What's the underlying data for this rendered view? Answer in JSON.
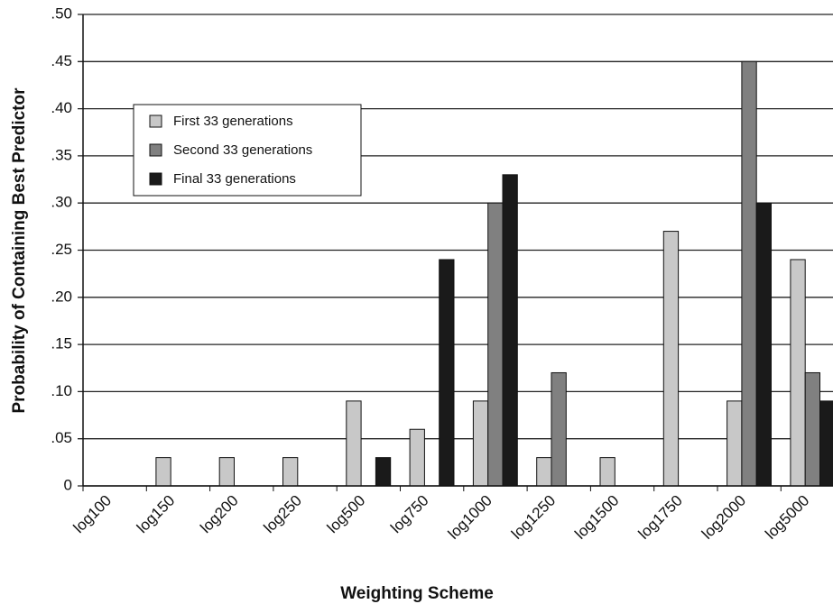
{
  "chart_data": {
    "type": "bar",
    "x_label": "Weighting Scheme",
    "y_label": "Probability of Containing Best Predictor",
    "categories": [
      "log100",
      "log150",
      "log200",
      "log250",
      "log500",
      "log750",
      "log1000",
      "log1250",
      "log1500",
      "log1750",
      "log2000",
      "log5000"
    ],
    "series": [
      {
        "name": "First 33 generations",
        "color": "#c8c8c8",
        "values": [
          0,
          0.03,
          0.03,
          0.03,
          0.09,
          0.06,
          0.09,
          0.03,
          0.03,
          0.27,
          0.09,
          0.24
        ]
      },
      {
        "name": "Second 33 generations",
        "color": "#808080",
        "values": [
          0,
          0,
          0,
          0,
          0,
          0,
          0.3,
          0.12,
          0,
          0,
          0.45,
          0.12
        ]
      },
      {
        "name": "Final 33 generations",
        "color": "#1a1a1a",
        "values": [
          0,
          0,
          0,
          0,
          0.03,
          0.24,
          0.33,
          0,
          0,
          0,
          0.3,
          0.09
        ]
      }
    ],
    "ylim": [
      0,
      0.5
    ],
    "yticks": [
      0,
      {
        "value": 0.05,
        "label": ".05"
      },
      {
        "value": 0.1,
        "label": ".10"
      },
      {
        "value": 0.15,
        "label": ".15"
      },
      {
        "value": 0.2,
        "label": ".20"
      },
      {
        "value": 0.25,
        "label": ".25"
      },
      {
        "value": 0.3,
        "label": ".30"
      },
      {
        "value": 0.35,
        "label": ".35"
      },
      {
        "value": 0.4,
        "label": ".40"
      },
      {
        "value": 0.45,
        "label": ".45"
      },
      {
        "value": 0.5,
        "label": ".50"
      }
    ],
    "grid": true
  }
}
